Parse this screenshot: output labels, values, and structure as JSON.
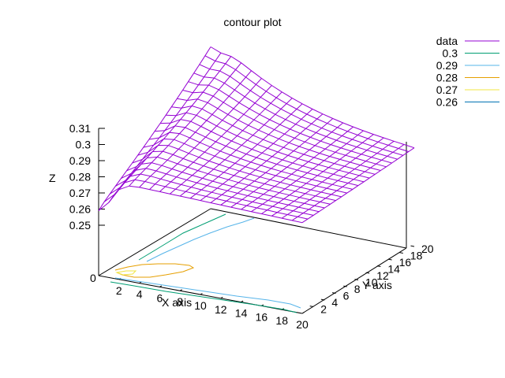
{
  "chart_data": {
    "type": "surface",
    "title": "contour plot",
    "xlabel": "X axis",
    "ylabel": "Y axis",
    "zlabel": "Z",
    "x_ticks": [
      "2",
      "4",
      "6",
      "8",
      "10",
      "12",
      "14",
      "16",
      "18",
      "20"
    ],
    "y_ticks": [
      "2",
      "4",
      "6",
      "8",
      "10",
      "12",
      "14",
      "16",
      "18",
      "20"
    ],
    "z_ticks": [
      "0.31",
      "0.3",
      "0.29",
      "0.28",
      "0.27",
      "0.26",
      "0.25"
    ],
    "z_base_label": "0",
    "xlim": [
      0,
      20
    ],
    "ylim": [
      0,
      20
    ],
    "zlim": [
      0.25,
      0.31
    ],
    "grid": false,
    "legend_position": "top-right",
    "legend": [
      {
        "label": "data",
        "color": "#9400d3"
      },
      {
        "label": "0.3",
        "color": "#009e73"
      },
      {
        "label": "0.29",
        "color": "#56b4e9"
      },
      {
        "label": "0.28",
        "color": "#e69f00"
      },
      {
        "label": "0.27",
        "color": "#f0e442"
      },
      {
        "label": "0.26",
        "color": "#0072b2"
      }
    ],
    "mesh_color": "#9400d3"
  }
}
